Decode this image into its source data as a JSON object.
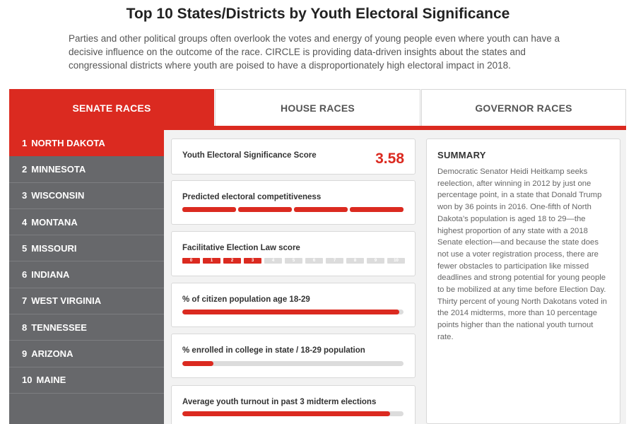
{
  "page": {
    "title": "Top 10 States/Districts by Youth Electoral Significance",
    "intro": "Parties and other political groups often overlook the votes and energy of young people even where youth can have a decisive influence on the outcome of the race. CIRCLE is providing data-driven insights about the states and congressional districts where youth are poised to have a disproportionately high electoral impact in 2018."
  },
  "tabs": [
    {
      "label": "SENATE RACES",
      "active": true
    },
    {
      "label": "HOUSE RACES",
      "active": false
    },
    {
      "label": "GOVERNOR RACES",
      "active": false
    }
  ],
  "sidebar": {
    "items": [
      {
        "num": "1",
        "label": "NORTH DAKOTA",
        "active": true
      },
      {
        "num": "2",
        "label": "MINNESOTA",
        "active": false
      },
      {
        "num": "3",
        "label": "WISCONSIN",
        "active": false
      },
      {
        "num": "4",
        "label": "MONTANA",
        "active": false
      },
      {
        "num": "5",
        "label": "MISSOURI",
        "active": false
      },
      {
        "num": "6",
        "label": "INDIANA",
        "active": false
      },
      {
        "num": "7",
        "label": "WEST VIRGINIA",
        "active": false
      },
      {
        "num": "8",
        "label": "TENNESSEE",
        "active": false
      },
      {
        "num": "9",
        "label": "ARIZONA",
        "active": false
      },
      {
        "num": "10",
        "label": "MAINE",
        "active": false
      }
    ]
  },
  "metrics": {
    "score": {
      "label": "Youth Electoral Significance Score",
      "value": "3.58"
    },
    "competitiveness": {
      "label": "Predicted electoral competitiveness",
      "filled_segments": 4,
      "total_segments": 4
    },
    "law_score": {
      "label": "Facilitative Election Law score",
      "scale": [
        "0",
        "1",
        "2",
        "3",
        "4",
        "5",
        "6",
        "7",
        "8",
        "9",
        "10"
      ],
      "value": 3
    },
    "pct_18_29": {
      "label": "% of citizen population age 18-29",
      "fraction": 0.98
    },
    "college": {
      "label": "% enrolled in college in state / 18-29 population",
      "fraction": 0.14
    },
    "turnout": {
      "label": "Average youth turnout in past 3 midterm elections",
      "fraction": 0.94
    }
  },
  "summary": {
    "title": "SUMMARY",
    "text": "Democratic Senator Heidi Heitkamp seeks reelection, after winning in 2012 by just one percentage point, in a state that Donald Trump won by 36 points in 2016. One-fifth of North Dakota’s population is aged 18 to 29—the highest proportion of any state with a 2018 Senate election—and because the state does not use a voter registration process, there are fewer obstacles to participation like missed deadlines and strong potential for young people to be mobilized at any time before Election Day. Thirty percent of young North Dakotans voted in the 2014 midterms, more than 10 percentage points higher than the national youth turnout rate."
  },
  "colors": {
    "accent": "#db2a20",
    "sidebar": "#67686b",
    "track": "#dcdcdc"
  }
}
